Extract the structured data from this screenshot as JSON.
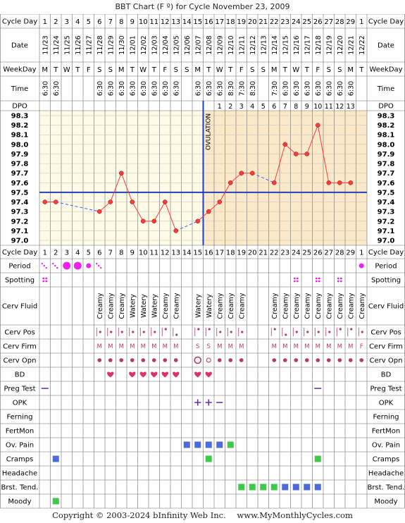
{
  "title": "BBT Chart (F º) for Cycle November 23, 2009",
  "footer": {
    "copyright": "Copyright © 2003-2024 bInfinity Web Inc.",
    "site": "www.MyMonthlyCycles.com"
  },
  "row_labels": {
    "cycle_day": "Cycle Day",
    "date": "Date",
    "weekday": "WeekDay",
    "time": "Time",
    "dpo": "DPO",
    "period": "Period",
    "spotting": "Spotting",
    "cerv_fluid": "Cerv Fluid",
    "cerv_pos": "Cerv Pos",
    "cerv_firm": "Cerv Firm",
    "cerv_opn": "Cerv Opn",
    "bd": "BD",
    "preg_test": "Preg Test",
    "opk": "OPK",
    "ferning": "Ferning",
    "fertmon": "FertMon",
    "ov_pain": "Ov. Pain",
    "cramps": "Cramps",
    "headache": "Headache",
    "brst_tend": "Brst. Tend.",
    "moody": "Moody"
  },
  "ovulation_label": "OVULATION",
  "colors": {
    "grid": "#6e6e6e",
    "label_bg": "#ffffff",
    "pre_bg": "#fdfbe6",
    "post_bg": "#fbe9c9",
    "temp_line": "#ff3b3b",
    "gap_line": "#3366ff",
    "coverline": "#1f3fbf",
    "ovulation_line": "#1f3fbf",
    "period": "#ee22ee",
    "spotting": "#ee22ee",
    "cerv": "#b33b6a",
    "bd_heart": "#e0306b",
    "symptom_blue": "#4d6bd8",
    "symptom_green": "#3fc94a",
    "preg_opk": "#6633aa"
  },
  "columns": {
    "cycle_days": [
      "1",
      "2",
      "3",
      "4",
      "5",
      "6",
      "7",
      "8",
      "9",
      "10",
      "11",
      "12",
      "13",
      "14",
      "15",
      "16",
      "17",
      "18",
      "19",
      "20",
      "21",
      "22",
      "23",
      "24",
      "25",
      "26",
      "27",
      "28",
      "29",
      "1"
    ],
    "dates": [
      "11/23",
      "11/24",
      "11/25",
      "11/26",
      "11/27",
      "11/28",
      "11/29",
      "11/30",
      "12/01",
      "12/02",
      "12/03",
      "12/04",
      "12/05",
      "12/06",
      "12/07",
      "12/08",
      "12/09",
      "12/10",
      "12/11",
      "12/12",
      "12/13",
      "12/14",
      "12/15",
      "12/16",
      "12/17",
      "12/18",
      "12/19",
      "12/20",
      "12/21",
      "12/22"
    ],
    "weekdays": [
      "M",
      "T",
      "W",
      "T",
      "F",
      "S",
      "S",
      "M",
      "T",
      "W",
      "T",
      "F",
      "S",
      "S",
      "M",
      "T",
      "W",
      "T",
      "F",
      "S",
      "S",
      "M",
      "T",
      "W",
      "T",
      "F",
      "S",
      "S",
      "M",
      "T"
    ],
    "times": [
      "6:30",
      "6:30",
      "",
      "",
      "",
      "6:30",
      "6:30",
      "6:30",
      "6:30",
      "6:30",
      "6:30",
      "6:30",
      "6:30",
      "",
      "6:30",
      "6:30",
      "6:30",
      "8:30",
      "7:30",
      "8:30",
      "",
      "7:30",
      "6:30",
      "6:30",
      "6:30",
      "6:30",
      "6:30",
      "6:30",
      "6:30",
      ""
    ],
    "dpo": [
      "",
      "",
      "",
      "",
      "",
      "",
      "",
      "",
      "",
      "",
      "",
      "",
      "",
      "",
      "",
      "",
      "1",
      "2",
      "3",
      "4",
      "5",
      "6",
      "7",
      "8",
      "9",
      "10",
      "11",
      "12",
      "13",
      ""
    ]
  },
  "chart_data": {
    "type": "line",
    "title": "BBT Chart (F º) for Cycle November 23, 2009",
    "x": [
      "1",
      "2",
      "3",
      "4",
      "5",
      "6",
      "7",
      "8",
      "9",
      "10",
      "11",
      "12",
      "13",
      "14",
      "15",
      "16",
      "17",
      "18",
      "19",
      "20",
      "21",
      "22",
      "23",
      "24",
      "25",
      "26",
      "27",
      "28",
      "29",
      "1"
    ],
    "series": [
      {
        "values": [
          97.4,
          97.4,
          null,
          null,
          null,
          97.3,
          97.4,
          97.7,
          97.4,
          97.2,
          97.2,
          97.4,
          97.1,
          null,
          97.2,
          97.3,
          97.4,
          97.6,
          97.7,
          97.7,
          null,
          97.6,
          98.0,
          97.9,
          97.9,
          98.2,
          97.6,
          97.6,
          97.6,
          null
        ]
      }
    ],
    "yticks": [
      "98.3",
      "98.2",
      "98.1",
      "98.0",
      "97.9",
      "97.8",
      "97.7",
      "97.6",
      "97.5",
      "97.4",
      "97.3",
      "97.2",
      "97.1",
      "97.0"
    ],
    "ylim": [
      97.0,
      98.3
    ],
    "coverline": 97.5,
    "ovulation_day_index": 15,
    "grid": true
  },
  "observations": {
    "period": [
      "light",
      "light",
      "heavy",
      "heavy",
      "medium",
      "light",
      "",
      "",
      "",
      "",
      "",
      "",
      "",
      "",
      "",
      "",
      "",
      "",
      "",
      "",
      "",
      "",
      "",
      "",
      "",
      "",
      "",
      "",
      "",
      "medium"
    ],
    "spotting": [
      "spot",
      "",
      "",
      "",
      "",
      "",
      "",
      "",
      "",
      "",
      "",
      "",
      "",
      "",
      "",
      "",
      "",
      "",
      "",
      "",
      "",
      "",
      "",
      "spot",
      "",
      "spot",
      "",
      "spot",
      "",
      ""
    ],
    "cerv_fluid": [
      "",
      "",
      "",
      "",
      "",
      "Creamy",
      "Creamy",
      "Creamy",
      "Watery",
      "Watery",
      "Watery",
      "Creamy",
      "Creamy",
      "",
      "Watery",
      "Watery",
      "Creamy",
      "Creamy",
      "Creamy",
      "",
      "",
      "Creamy",
      "Creamy",
      "Creamy",
      "Creamy",
      "Creamy",
      "Creamy",
      "Creamy",
      "Creamy",
      "Creamy"
    ],
    "cerv_pos": [
      "",
      "",
      "",
      "",
      "",
      "mid",
      "mid",
      "mid",
      "mid",
      "mid",
      "mid",
      "high",
      "low",
      "",
      "high",
      "high",
      "mid",
      "mid",
      "mid",
      "",
      "",
      "high",
      "low",
      "mid",
      "mid",
      "mid",
      "mid",
      "high",
      "high",
      "mid"
    ],
    "cerv_firm": [
      "",
      "",
      "",
      "",
      "",
      "M",
      "M",
      "M",
      "M",
      "M",
      "M",
      "M",
      "M",
      "",
      "S",
      "S",
      "M",
      "M",
      "M",
      "",
      "",
      "M",
      "M",
      "M",
      "M",
      "M",
      "M",
      "M",
      "M",
      "F"
    ],
    "cerv_opn": [
      "",
      "",
      "",
      "",
      "",
      "closed",
      "closed",
      "closed",
      "closed",
      "closed",
      "closed",
      "closed",
      "closed",
      "",
      "open",
      "medium",
      "closed",
      "closed",
      "closed",
      "",
      "",
      "closed",
      "closed",
      "closed",
      "closed",
      "closed",
      "closed",
      "closed",
      "closed",
      "closed"
    ],
    "bd": [
      "",
      "",
      "",
      "",
      "",
      "",
      "bd",
      "",
      "bd",
      "bd",
      "bd",
      "bd",
      "bd",
      "",
      "bd",
      "bd",
      "",
      "",
      "",
      "",
      "",
      "",
      "",
      "",
      "",
      "",
      "",
      "",
      "",
      ""
    ],
    "preg_test": [
      "neg",
      "",
      "",
      "",
      "",
      "",
      "",
      "",
      "",
      "",
      "",
      "",
      "",
      "",
      "",
      "",
      "",
      "",
      "",
      "",
      "",
      "",
      "",
      "",
      "",
      "neg",
      "",
      "",
      "",
      ""
    ],
    "opk": [
      "",
      "",
      "",
      "",
      "",
      "",
      "",
      "",
      "",
      "",
      "",
      "",
      "",
      "",
      "pos",
      "pos",
      "neg",
      "",
      "",
      "",
      "",
      "",
      "",
      "",
      "",
      "",
      "",
      "",
      "",
      ""
    ],
    "ferning": [
      "",
      "",
      "",
      "",
      "",
      "",
      "",
      "",
      "",
      "",
      "",
      "",
      "",
      "",
      "",
      "",
      "",
      "",
      "",
      "",
      "",
      "",
      "",
      "",
      "",
      "",
      "",
      "",
      "",
      ""
    ],
    "fertmon": [
      "",
      "",
      "",
      "",
      "",
      "",
      "",
      "",
      "",
      "",
      "",
      "",
      "",
      "",
      "",
      "",
      "",
      "",
      "",
      "",
      "",
      "",
      "",
      "",
      "",
      "",
      "",
      "",
      "",
      ""
    ],
    "ov_pain": [
      "",
      "",
      "",
      "",
      "",
      "",
      "",
      "",
      "",
      "",
      "",
      "",
      "",
      "blue",
      "blue",
      "blue",
      "blue",
      "green",
      "",
      "",
      "",
      "",
      "",
      "",
      "",
      "",
      "",
      "",
      "",
      ""
    ],
    "cramps": [
      "",
      "blue",
      "",
      "",
      "",
      "",
      "",
      "",
      "",
      "",
      "",
      "",
      "",
      "",
      "",
      "green",
      "",
      "",
      "",
      "",
      "",
      "",
      "",
      "",
      "",
      "green",
      "",
      "",
      "",
      ""
    ],
    "headache": [
      "",
      "",
      "",
      "",
      "",
      "",
      "",
      "",
      "",
      "",
      "",
      "",
      "",
      "",
      "",
      "",
      "",
      "",
      "",
      "",
      "",
      "",
      "",
      "",
      "",
      "",
      "",
      "",
      "",
      ""
    ],
    "brst_tend": [
      "",
      "",
      "",
      "",
      "",
      "",
      "",
      "",
      "",
      "",
      "",
      "",
      "",
      "",
      "",
      "",
      "",
      "",
      "green",
      "green",
      "green",
      "green",
      "blue",
      "blue",
      "blue",
      "blue",
      "",
      "",
      "",
      ""
    ],
    "moody": [
      "",
      "green",
      "",
      "",
      "",
      "",
      "",
      "",
      "",
      "",
      "",
      "",
      "",
      "",
      "",
      "",
      "",
      "",
      "",
      "",
      "",
      "",
      "",
      "",
      "",
      "",
      "",
      "",
      "",
      ""
    ]
  }
}
